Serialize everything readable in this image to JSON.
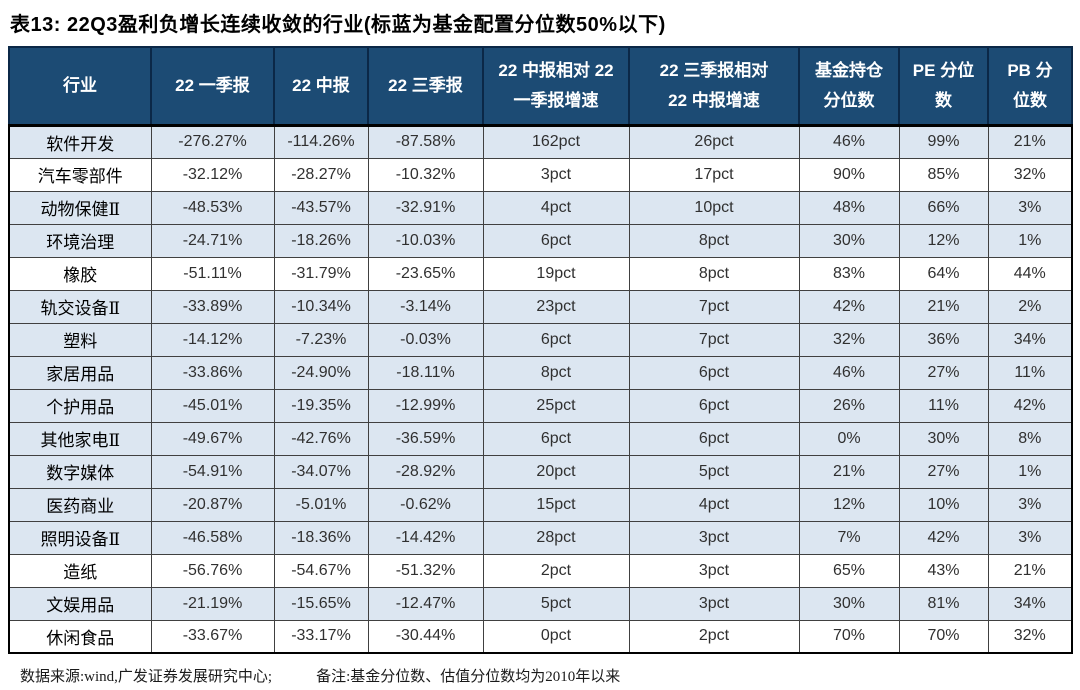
{
  "title": "表13: 22Q3盈利负增长连续收敛的行业(标蓝为基金配置分位数50%以下)",
  "colors": {
    "header_bg": "#1c4b74",
    "header_text": "#ffffff",
    "highlight_row_bg": "#dce6f1",
    "plain_row_bg": "#ffffff",
    "grid_line": "#404040",
    "outer_border": "#000000",
    "body_text": "#303030"
  },
  "table": {
    "columns": [
      {
        "label": "行业"
      },
      {
        "label": "22 一季报"
      },
      {
        "label": "22 中报"
      },
      {
        "label": "22 三季报"
      },
      {
        "label": "22 中报相对 22\n一季报增速"
      },
      {
        "label": "22 三季报相对\n22 中报增速"
      },
      {
        "label": "基金持仓\n分位数"
      },
      {
        "label": "PE 分位\n数"
      },
      {
        "label": "PB 分\n位数"
      }
    ],
    "rows": [
      {
        "cells": [
          "软件开发",
          "-276.27%",
          "-114.26%",
          "-87.58%",
          "162pct",
          "26pct",
          "46%",
          "99%",
          "21%"
        ],
        "highlighted": true
      },
      {
        "cells": [
          "汽车零部件",
          "-32.12%",
          "-28.27%",
          "-10.32%",
          "3pct",
          "17pct",
          "90%",
          "85%",
          "32%"
        ],
        "highlighted": false
      },
      {
        "cells": [
          "动物保健Ⅱ",
          "-48.53%",
          "-43.57%",
          "-32.91%",
          "4pct",
          "10pct",
          "48%",
          "66%",
          "3%"
        ],
        "highlighted": true
      },
      {
        "cells": [
          "环境治理",
          "-24.71%",
          "-18.26%",
          "-10.03%",
          "6pct",
          "8pct",
          "30%",
          "12%",
          "1%"
        ],
        "highlighted": true
      },
      {
        "cells": [
          "橡胶",
          "-51.11%",
          "-31.79%",
          "-23.65%",
          "19pct",
          "8pct",
          "83%",
          "64%",
          "44%"
        ],
        "highlighted": false
      },
      {
        "cells": [
          "轨交设备Ⅱ",
          "-33.89%",
          "-10.34%",
          "-3.14%",
          "23pct",
          "7pct",
          "42%",
          "21%",
          "2%"
        ],
        "highlighted": true
      },
      {
        "cells": [
          "塑料",
          "-14.12%",
          "-7.23%",
          "-0.03%",
          "6pct",
          "7pct",
          "32%",
          "36%",
          "34%"
        ],
        "highlighted": true
      },
      {
        "cells": [
          "家居用品",
          "-33.86%",
          "-24.90%",
          "-18.11%",
          "8pct",
          "6pct",
          "46%",
          "27%",
          "11%"
        ],
        "highlighted": true
      },
      {
        "cells": [
          "个护用品",
          "-45.01%",
          "-19.35%",
          "-12.99%",
          "25pct",
          "6pct",
          "26%",
          "11%",
          "42%"
        ],
        "highlighted": true
      },
      {
        "cells": [
          "其他家电Ⅱ",
          "-49.67%",
          "-42.76%",
          "-36.59%",
          "6pct",
          "6pct",
          "0%",
          "30%",
          "8%"
        ],
        "highlighted": true
      },
      {
        "cells": [
          "数字媒体",
          "-54.91%",
          "-34.07%",
          "-28.92%",
          "20pct",
          "5pct",
          "21%",
          "27%",
          "1%"
        ],
        "highlighted": true
      },
      {
        "cells": [
          "医药商业",
          "-20.87%",
          "-5.01%",
          "-0.62%",
          "15pct",
          "4pct",
          "12%",
          "10%",
          "3%"
        ],
        "highlighted": true
      },
      {
        "cells": [
          "照明设备Ⅱ",
          "-46.58%",
          "-18.36%",
          "-14.42%",
          "28pct",
          "3pct",
          "7%",
          "42%",
          "3%"
        ],
        "highlighted": true
      },
      {
        "cells": [
          "造纸",
          "-56.76%",
          "-54.67%",
          "-51.32%",
          "2pct",
          "3pct",
          "65%",
          "43%",
          "21%"
        ],
        "highlighted": false
      },
      {
        "cells": [
          "文娱用品",
          "-21.19%",
          "-15.65%",
          "-12.47%",
          "5pct",
          "3pct",
          "30%",
          "81%",
          "34%"
        ],
        "highlighted": true
      },
      {
        "cells": [
          "休闲食品",
          "-33.67%",
          "-33.17%",
          "-30.44%",
          "0pct",
          "2pct",
          "70%",
          "70%",
          "32%"
        ],
        "highlighted": false
      }
    ]
  },
  "footer": {
    "source": "数据来源:wind,广发证券发展研究中心;",
    "note": "备注:基金分位数、估值分位数均为2010年以来"
  }
}
